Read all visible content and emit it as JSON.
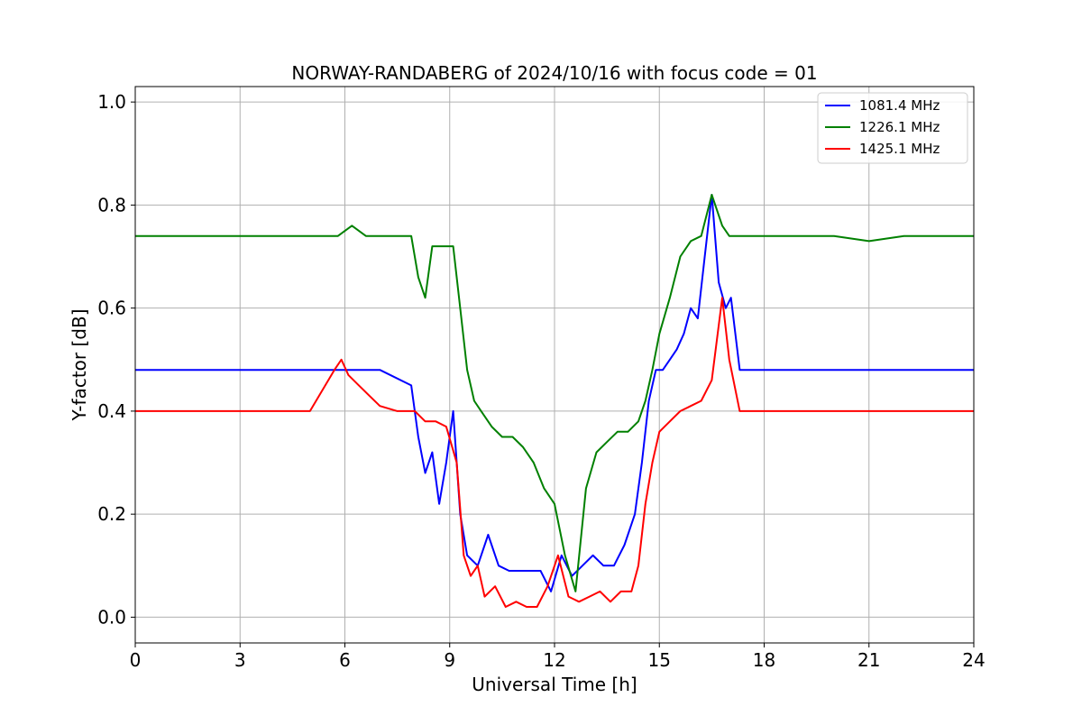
{
  "chart_data": {
    "type": "line",
    "title": "NORWAY-RANDABERG of 2024/10/16 with focus code = 01",
    "xlabel": "Universal Time [h]",
    "ylabel": "Y-factor [dB]",
    "xlim": [
      0,
      24
    ],
    "ylim": [
      -0.05,
      1.03
    ],
    "xticks": [
      0,
      3,
      6,
      9,
      12,
      15,
      18,
      21,
      24
    ],
    "yticks": [
      0.0,
      0.2,
      0.4,
      0.6,
      0.8,
      1.0
    ],
    "xtick_labels": [
      "0",
      "3",
      "6",
      "9",
      "12",
      "15",
      "18",
      "21",
      "24"
    ],
    "ytick_labels": [
      "0.0",
      "0.2",
      "0.4",
      "0.6",
      "0.8",
      "1.0"
    ],
    "grid": true,
    "legend_position": "top-right",
    "series": [
      {
        "name": "1081.4 MHz",
        "color": "#0000ff",
        "x": [
          0,
          1,
          2,
          3,
          4,
          5,
          6,
          7,
          7.9,
          8.1,
          8.3,
          8.5,
          8.7,
          8.9,
          9.1,
          9.3,
          9.5,
          9.8,
          10.1,
          10.4,
          10.7,
          11.0,
          11.3,
          11.6,
          11.9,
          12.2,
          12.5,
          12.8,
          13.1,
          13.4,
          13.7,
          14.0,
          14.3,
          14.5,
          14.7,
          14.9,
          15.1,
          15.3,
          15.5,
          15.7,
          15.9,
          16.1,
          16.3,
          16.5,
          16.7,
          16.9,
          17.05,
          17.3,
          18,
          19,
          20,
          21,
          22,
          23,
          24
        ],
        "y": [
          0.48,
          0.48,
          0.48,
          0.48,
          0.48,
          0.48,
          0.48,
          0.48,
          0.45,
          0.35,
          0.28,
          0.32,
          0.22,
          0.3,
          0.4,
          0.2,
          0.12,
          0.1,
          0.16,
          0.1,
          0.09,
          0.09,
          0.09,
          0.09,
          0.05,
          0.12,
          0.08,
          0.1,
          0.12,
          0.1,
          0.1,
          0.14,
          0.2,
          0.3,
          0.42,
          0.48,
          0.48,
          0.5,
          0.52,
          0.55,
          0.6,
          0.58,
          0.7,
          0.82,
          0.65,
          0.6,
          0.62,
          0.48,
          0.48,
          0.48,
          0.48,
          0.48,
          0.48,
          0.48,
          0.48
        ]
      },
      {
        "name": "1226.1 MHz",
        "color": "#008000",
        "x": [
          0,
          1,
          2,
          3,
          4,
          5,
          5.8,
          6.2,
          6.6,
          7,
          7.5,
          7.9,
          8.1,
          8.3,
          8.5,
          8.8,
          9.1,
          9.3,
          9.5,
          9.7,
          9.9,
          10.2,
          10.5,
          10.8,
          11.1,
          11.4,
          11.7,
          12.0,
          12.3,
          12.6,
          12.9,
          13.2,
          13.5,
          13.8,
          14.1,
          14.4,
          14.6,
          14.8,
          15.0,
          15.3,
          15.6,
          15.9,
          16.2,
          16.5,
          16.8,
          17.0,
          17.3,
          18,
          19,
          20,
          21,
          22,
          23,
          24
        ],
        "y": [
          0.74,
          0.74,
          0.74,
          0.74,
          0.74,
          0.74,
          0.74,
          0.76,
          0.74,
          0.74,
          0.74,
          0.74,
          0.66,
          0.62,
          0.72,
          0.72,
          0.72,
          0.6,
          0.48,
          0.42,
          0.4,
          0.37,
          0.35,
          0.35,
          0.33,
          0.3,
          0.25,
          0.22,
          0.12,
          0.05,
          0.25,
          0.32,
          0.34,
          0.36,
          0.36,
          0.38,
          0.42,
          0.48,
          0.55,
          0.62,
          0.7,
          0.73,
          0.74,
          0.82,
          0.76,
          0.74,
          0.74,
          0.74,
          0.74,
          0.74,
          0.73,
          0.74,
          0.74,
          0.74
        ]
      },
      {
        "name": "1425.1 MHz",
        "color": "#ff0000",
        "x": [
          0,
          1,
          2,
          3,
          4,
          5,
          5.7,
          5.9,
          6.1,
          6.4,
          6.7,
          7.0,
          7.5,
          8.0,
          8.3,
          8.6,
          8.9,
          9.2,
          9.4,
          9.6,
          9.8,
          10.0,
          10.3,
          10.6,
          10.9,
          11.2,
          11.5,
          11.8,
          12.1,
          12.4,
          12.7,
          13.0,
          13.3,
          13.6,
          13.9,
          14.2,
          14.4,
          14.6,
          14.8,
          15.0,
          15.3,
          15.6,
          15.9,
          16.2,
          16.5,
          16.8,
          17.0,
          17.3,
          18,
          19,
          20,
          21,
          22,
          23,
          24
        ],
        "y": [
          0.4,
          0.4,
          0.4,
          0.4,
          0.4,
          0.4,
          0.48,
          0.5,
          0.47,
          0.45,
          0.43,
          0.41,
          0.4,
          0.4,
          0.38,
          0.38,
          0.37,
          0.3,
          0.12,
          0.08,
          0.1,
          0.04,
          0.06,
          0.02,
          0.03,
          0.02,
          0.02,
          0.06,
          0.12,
          0.04,
          0.03,
          0.04,
          0.05,
          0.03,
          0.05,
          0.05,
          0.1,
          0.22,
          0.3,
          0.36,
          0.38,
          0.4,
          0.41,
          0.42,
          0.46,
          0.62,
          0.5,
          0.4,
          0.4,
          0.4,
          0.4,
          0.4,
          0.4,
          0.4,
          0.4
        ]
      }
    ]
  }
}
